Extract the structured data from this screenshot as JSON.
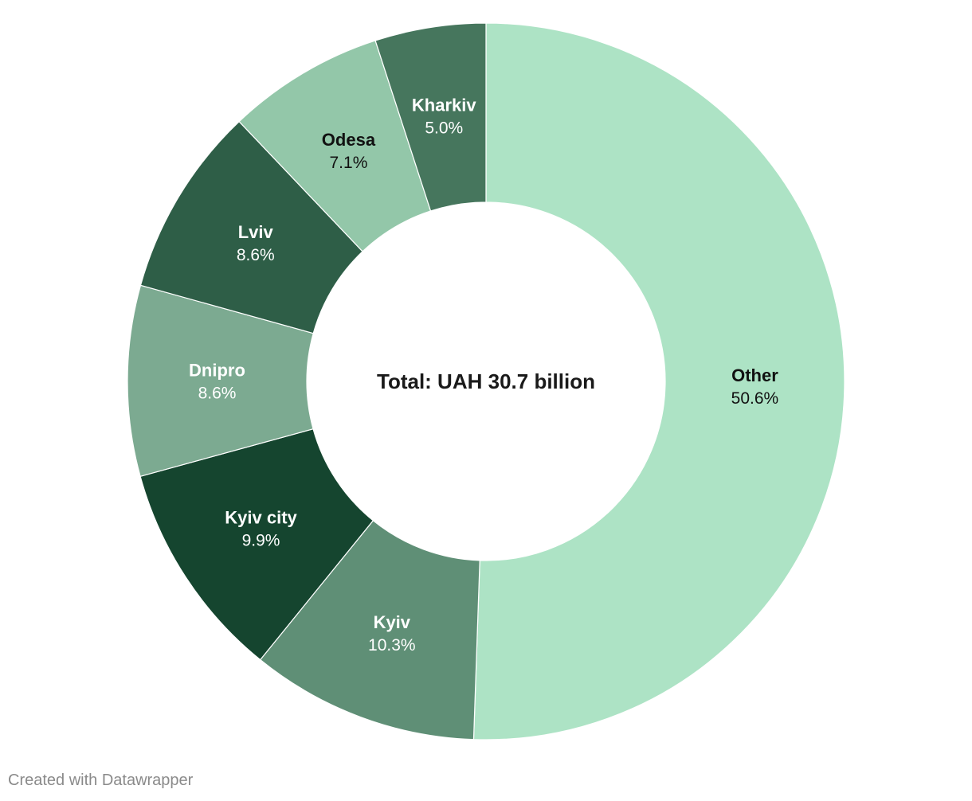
{
  "chart_data": {
    "type": "pie",
    "variant": "donut",
    "center_label": "Total: UAH 30.7 billion",
    "slices": [
      {
        "name": "Other",
        "display": "50.6%",
        "value": 50.6,
        "color": "#ade3c5",
        "label_color": "#111111"
      },
      {
        "name": "Kyiv",
        "display": "10.3%",
        "value": 10.3,
        "color": "#5f8f76",
        "label_color": "#ffffff"
      },
      {
        "name": "Kyiv city",
        "display": "9.9%",
        "value": 9.9,
        "color": "#15452f",
        "label_color": "#ffffff"
      },
      {
        "name": "Dnipro",
        "display": "8.6%",
        "value": 8.6,
        "color": "#7caa91",
        "label_color": "#ffffff"
      },
      {
        "name": "Lviv",
        "display": "8.6%",
        "value": 8.6,
        "color": "#2e5e47",
        "label_color": "#ffffff"
      },
      {
        "name": "Odesa",
        "display": "7.1%",
        "value": 7.1,
        "color": "#93c7a9",
        "label_color": "#111111"
      },
      {
        "name": "Kharkiv",
        "display": "5.0%",
        "value": 5.0,
        "color": "#46765d",
        "label_color": "#ffffff"
      }
    ]
  },
  "footer": {
    "credit": "Created with Datawrapper"
  }
}
